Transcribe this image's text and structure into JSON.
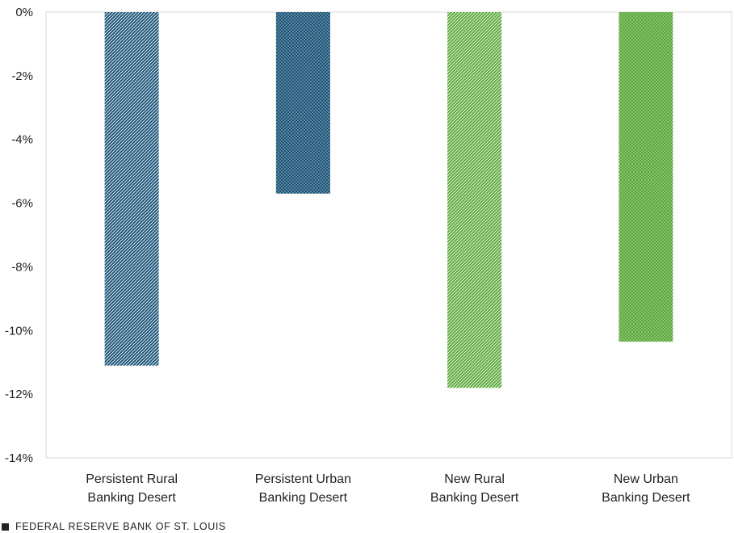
{
  "chart_data": {
    "type": "bar",
    "categories": [
      [
        "Persistent Rural",
        "Banking Desert"
      ],
      [
        "Persistent Urban",
        "Banking Desert"
      ],
      [
        "New Rural",
        "Banking Desert"
      ],
      [
        "New Urban",
        "Banking Desert"
      ]
    ],
    "values": [
      -11.1,
      -5.7,
      -11.8,
      -10.35
    ],
    "ylim": [
      -14,
      0
    ],
    "yticks": [
      0,
      -2,
      -4,
      -6,
      -8,
      -10,
      -12,
      -14
    ],
    "ytick_labels": [
      "0%",
      "-2%",
      "-4%",
      "-6%",
      "-8%",
      "-10%",
      "-12%",
      "-14%"
    ],
    "bar_colors": [
      "#1b5478",
      "#1b5478",
      "#5aa83a",
      "#5aa83a"
    ],
    "bar_patterns": [
      "diagonal",
      "dots",
      "diagonal",
      "dots"
    ],
    "grid": false
  },
  "footer": {
    "source": "FEDERAL RESERVE BANK OF ST. LOUIS"
  }
}
